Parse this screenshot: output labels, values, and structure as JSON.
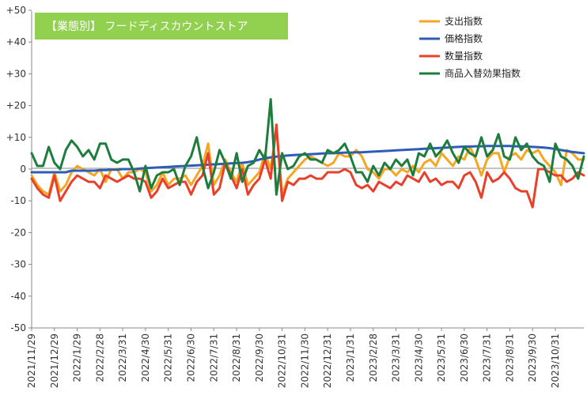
{
  "chart_data": {
    "type": "line",
    "title": "【業態別】 フードディスカウントストア",
    "title_bg_color": "#92D050",
    "ylim": [
      -50,
      50
    ],
    "y_ticks": [
      "-50",
      "-40",
      "-30",
      "-20",
      "-10",
      "0",
      "+10",
      "+20",
      "+30",
      "+40",
      "+50"
    ],
    "grid": "none",
    "legend_position": "top-right",
    "x_tick_labels": [
      "2021/11/29",
      "2021/12/29",
      "2022/1/29",
      "2022/2/28",
      "2022/3/31",
      "2022/4/30",
      "2022/5/31",
      "2022/6/30",
      "2022/7/31",
      "2022/8/31",
      "2022/9/30",
      "2022/10/31",
      "2022/11/30",
      "2022/12/31",
      "2023/1/31",
      "2023/2/28",
      "2023/3/31",
      "2023/4/30",
      "2023/5/31",
      "2023/6/30",
      "2023/7/31",
      "2023/8/31",
      "2023/9/30",
      "2023/10/31"
    ],
    "x_tick_positions": [
      0,
      4,
      8,
      12,
      16,
      20,
      24,
      28,
      32,
      36,
      40,
      44,
      48,
      52,
      56,
      60,
      64,
      68,
      72,
      76,
      80,
      84,
      88,
      92
    ],
    "x_count": 98,
    "series": [
      {
        "name": "支出指数",
        "color": "#F5A623",
        "values": [
          -2,
          -5,
          -7,
          -8,
          -1,
          -7,
          -5,
          -1,
          1,
          0,
          -1,
          -2,
          0,
          -4,
          0,
          0,
          -3,
          -1,
          -1,
          0,
          -1,
          -7,
          -5,
          -1,
          -5,
          -3,
          -3,
          -2,
          -5,
          -2,
          1,
          8,
          -5,
          -2,
          3,
          -1,
          -4,
          2,
          -5,
          -3,
          -1,
          5,
          0,
          13,
          -8,
          -3,
          -1,
          1,
          3,
          4,
          3,
          2,
          1,
          2,
          5,
          4,
          4,
          6,
          4,
          0,
          -1,
          -3,
          0,
          0,
          -2,
          0,
          -1,
          1,
          -1,
          2,
          3,
          1,
          5,
          3,
          1,
          4,
          3,
          7,
          3,
          -2,
          3,
          5,
          5,
          -1,
          4,
          5,
          3,
          6,
          5,
          6,
          3,
          1,
          -1,
          -5,
          6,
          5,
          3,
          3
        ]
      },
      {
        "name": "価格指数",
        "color": "#2E5DB8",
        "values": [
          -1,
          -1,
          -1,
          -1,
          -1,
          -1,
          -1,
          -0.5,
          -0.5,
          -0.5,
          -0.5,
          -0.5,
          -0.3,
          -0.3,
          -0.2,
          -0.2,
          0,
          0,
          0,
          0.2,
          0.3,
          0.4,
          0.5,
          0.6,
          0.7,
          0.8,
          0.9,
          1,
          1.1,
          1.2,
          1.3,
          1.4,
          1.5,
          1.6,
          1.7,
          1.8,
          1.9,
          2,
          2.2,
          2.5,
          3,
          3.4,
          3.7,
          3.9,
          4.1,
          4.3,
          4.4,
          4.5,
          4.6,
          4.7,
          4.8,
          4.9,
          5,
          5,
          5.1,
          5.2,
          5.2,
          5.3,
          5.3,
          5.4,
          5.5,
          5.6,
          5.7,
          5.8,
          5.9,
          6,
          6.1,
          6.2,
          6.3,
          6.4,
          6.5,
          6.6,
          6.7,
          6.8,
          6.9,
          7,
          7.1,
          7.1,
          7.2,
          7.2,
          7.3,
          7.3,
          7.3,
          7.3,
          7.3,
          7.2,
          7.2,
          7.1,
          7,
          6.9,
          6.8,
          6.6,
          6.3,
          6,
          5.7,
          5.4,
          5.2,
          5
        ]
      },
      {
        "name": "数量指数",
        "color": "#E8402A",
        "values": [
          -3,
          -6,
          -8,
          -9,
          -2,
          -10,
          -7,
          -4,
          -2,
          -3,
          -4,
          -4,
          -6,
          -2,
          -3,
          -4,
          -3,
          -2,
          -3,
          -3,
          -4,
          -9,
          -7,
          -3,
          -6,
          -5,
          -4,
          -4,
          -8,
          -4,
          -2,
          5,
          -8,
          -6,
          2,
          -2,
          -6,
          0,
          -8,
          -5,
          -3,
          3,
          -3,
          14,
          -10,
          -4,
          -5,
          -3,
          -3,
          -2,
          -3,
          -3,
          -1,
          -1,
          -1,
          0,
          -1,
          -5,
          -6,
          -5,
          -7,
          -4,
          -5,
          -6,
          -4,
          -5,
          -2,
          -3,
          -4,
          -1,
          -4,
          -3,
          -5,
          -4,
          -4,
          -6,
          -2,
          -1,
          -4,
          -9,
          -1,
          -4,
          -3,
          -1,
          -3,
          -6,
          -7,
          -7,
          -12,
          0,
          0,
          -1,
          -2,
          -2,
          -4,
          -3,
          -1,
          -2
        ]
      },
      {
        "name": "商品入替効果指数",
        "color": "#1E7D3C",
        "values": [
          5,
          1,
          1,
          7,
          2,
          0,
          6,
          9,
          7,
          4,
          6,
          3,
          8,
          8,
          3,
          2,
          3,
          3,
          -1,
          -7,
          1,
          -6,
          -2,
          -1,
          -1,
          0,
          -5,
          1,
          4,
          10,
          1,
          -6,
          -1,
          6,
          2,
          -3,
          5,
          -4,
          1,
          2,
          6,
          3,
          22,
          -8,
          5,
          0,
          1,
          4,
          5,
          3,
          3,
          2,
          6,
          5,
          6,
          8,
          4,
          -1,
          -1,
          -4,
          1,
          -2,
          2,
          0,
          3,
          1,
          3,
          -2,
          5,
          4,
          8,
          4,
          6,
          9,
          5,
          2,
          7,
          5,
          4,
          10,
          4,
          6,
          11,
          4,
          3,
          10,
          6,
          8,
          4,
          2,
          1,
          -4,
          8,
          4,
          3,
          1,
          -3,
          4
        ]
      }
    ]
  }
}
